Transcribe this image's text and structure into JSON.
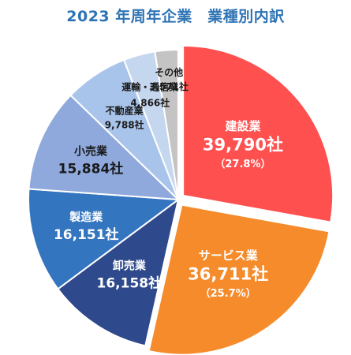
{
  "chart_data": {
    "type": "pie",
    "title": "2023 年周年企業　業種別内訳",
    "slices": [
      {
        "name": "建設業",
        "value": 39790,
        "value_label": "39,790社",
        "pct_label": "（27.8%）",
        "color": "#ff5050",
        "text_color": "#ffffff"
      },
      {
        "name": "サービス業",
        "value": 36711,
        "value_label": "36,711社",
        "pct_label": "（25.7%）",
        "color": "#f58b2a",
        "text_color": "#ffffff"
      },
      {
        "name": "卸売業",
        "value": 16158,
        "value_label": "16,158社",
        "pct_label": "",
        "color": "#2f4a8c",
        "text_color": "#ffffff"
      },
      {
        "name": "製造業",
        "value": 16151,
        "value_label": "16,151社",
        "pct_label": "",
        "color": "#3475c0",
        "text_color": "#ffffff"
      },
      {
        "name": "小売業",
        "value": 15884,
        "value_label": "15,884社",
        "pct_label": "",
        "color": "#8fa9dc",
        "text_color": "#1a1a1a"
      },
      {
        "name": "不動産業",
        "value": 9788,
        "value_label": "9,788社",
        "pct_label": "",
        "color": "#a9c4ea",
        "text_color": "#1a1a1a"
      },
      {
        "name": "運輸・通信業",
        "value": 4866,
        "value_label": "4,866社",
        "pct_label": "",
        "color": "#c5d6ef",
        "text_color": "#1a1a1a"
      },
      {
        "name": "その他",
        "value": 3571,
        "value_label": "3,571社",
        "pct_label": "",
        "color": "#c4c4c4",
        "text_color": "#1a1a1a"
      }
    ]
  }
}
